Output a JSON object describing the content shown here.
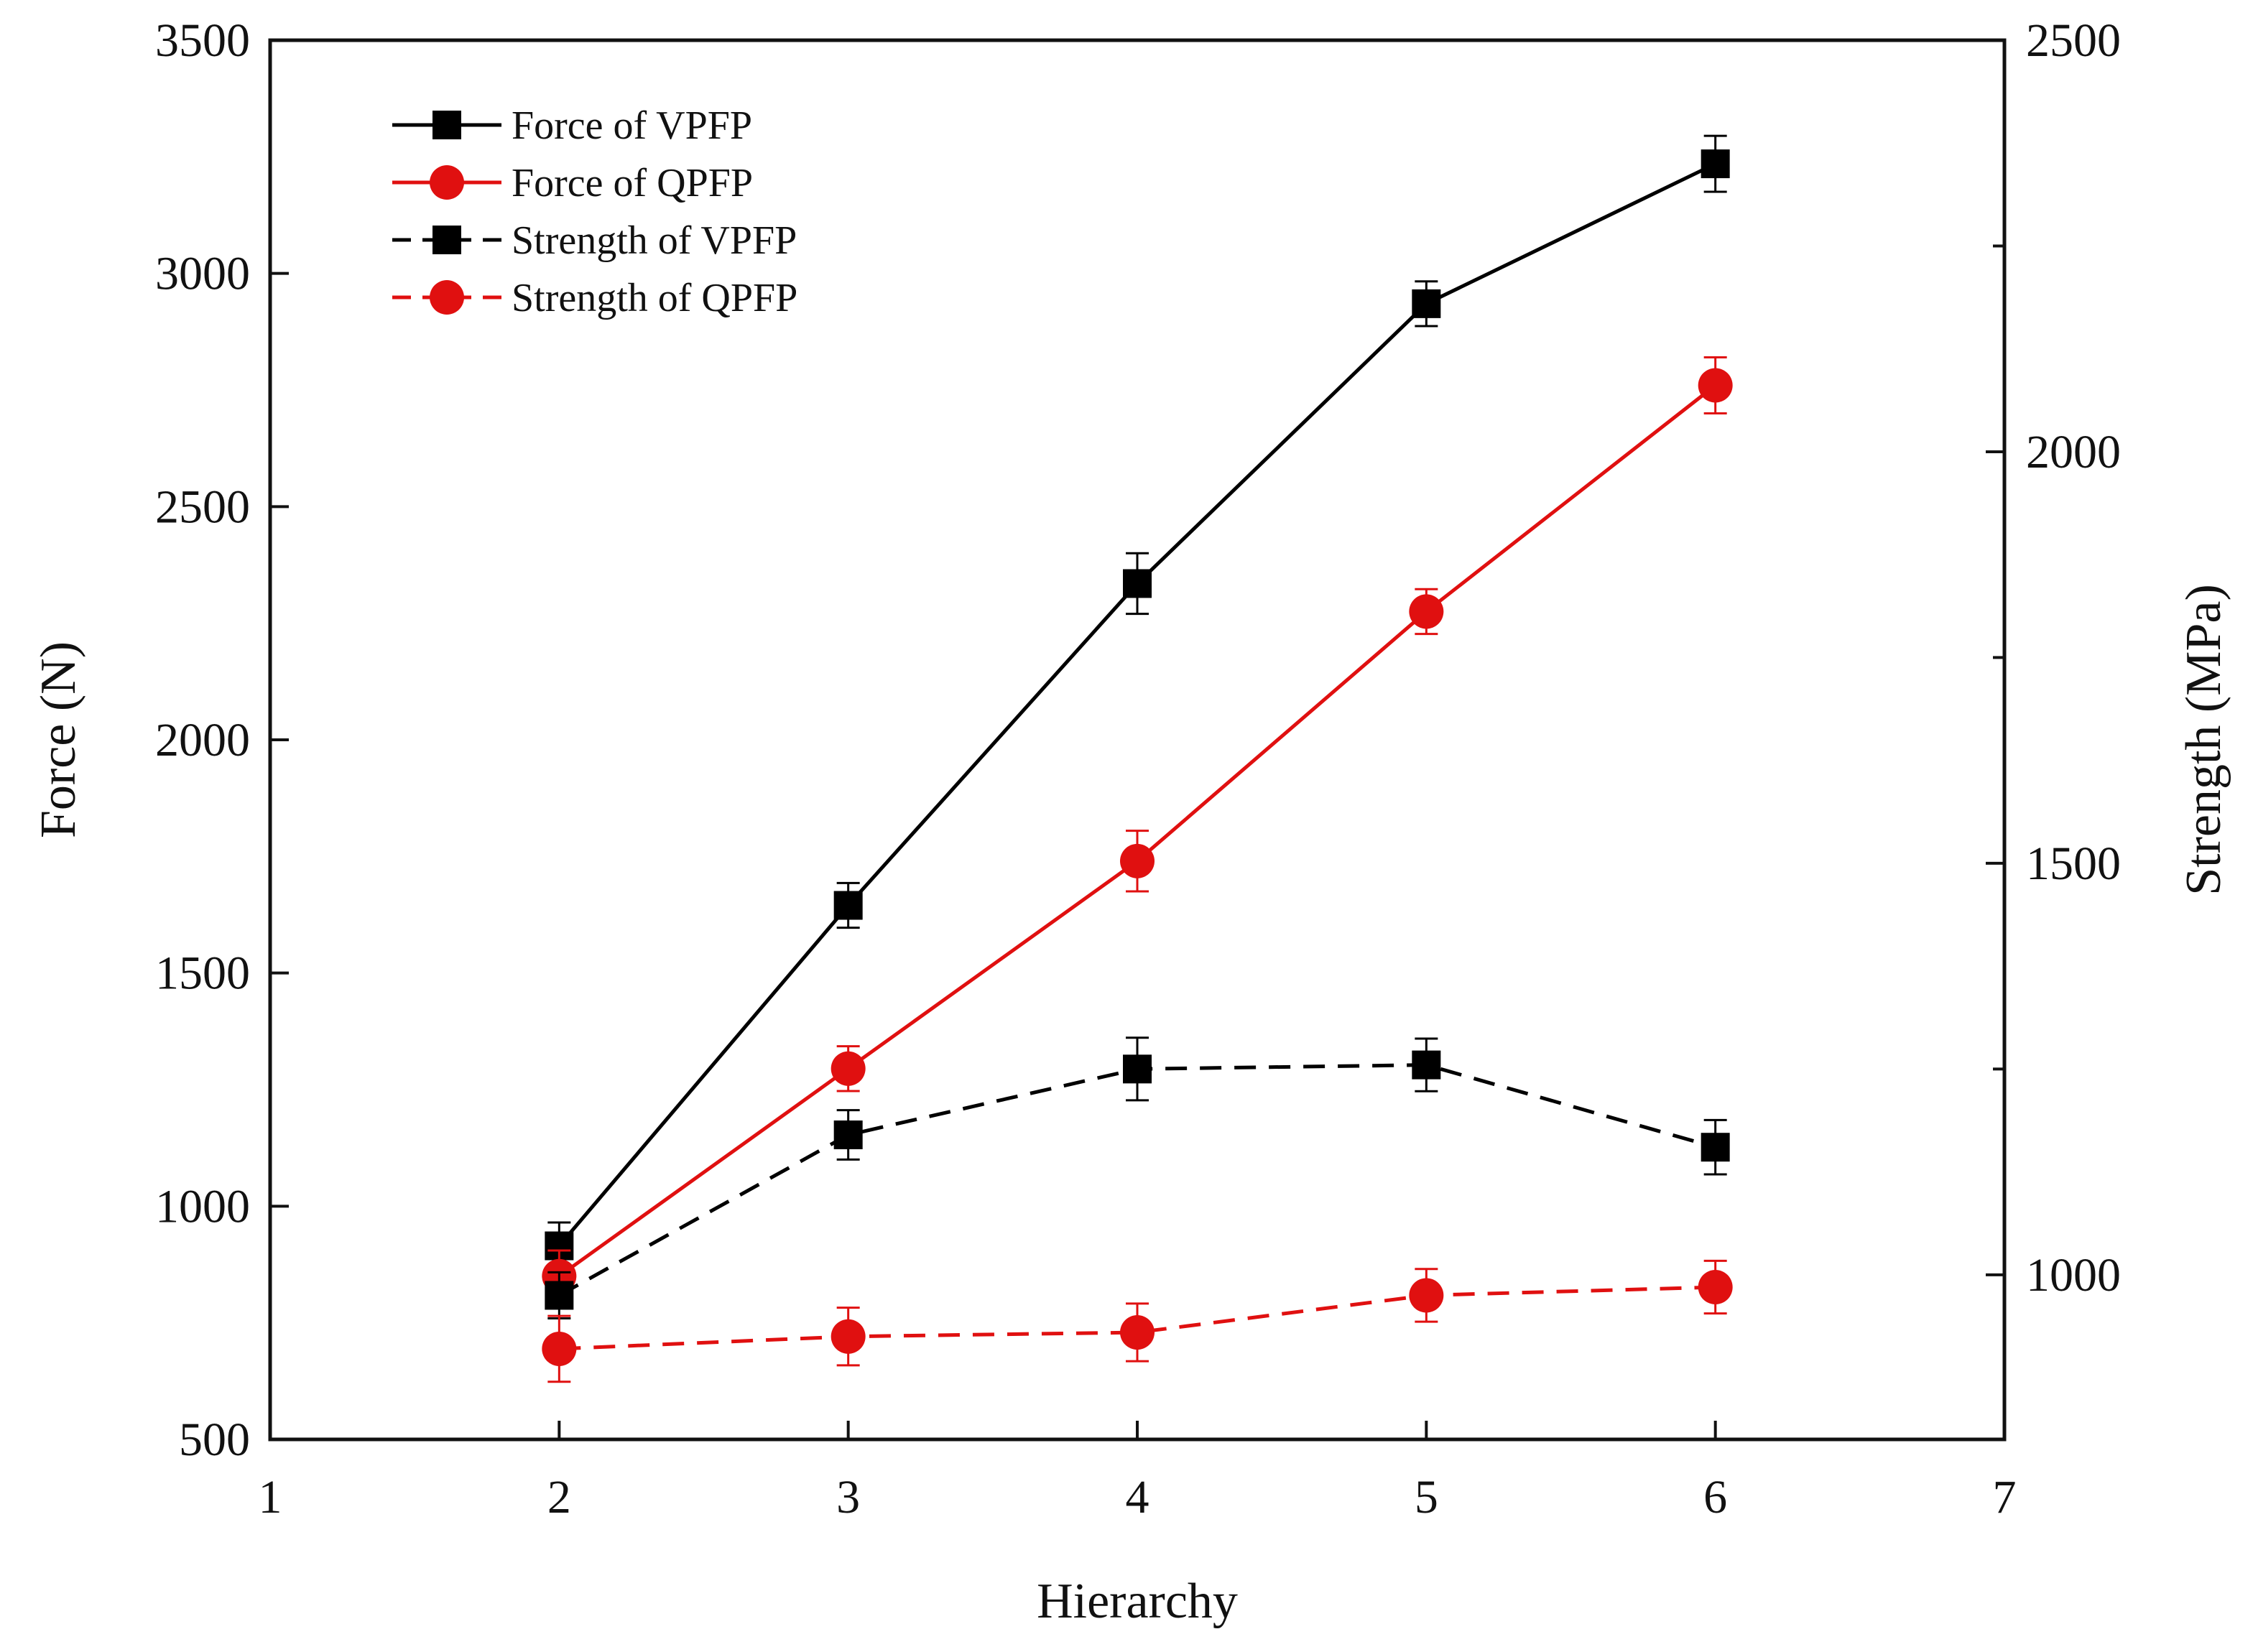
{
  "chart_data": {
    "type": "line",
    "xlabel": "Hierarchy",
    "ylabel_left": "Force (N)",
    "ylabel_right": "Strength (MPa)",
    "xlim": [
      1,
      7
    ],
    "ylim_left": [
      500,
      3500
    ],
    "ylim_right": [
      800,
      2500
    ],
    "xticks": [
      1,
      2,
      3,
      4,
      5,
      6,
      7
    ],
    "yticks_left": [
      500,
      1000,
      1500,
      2000,
      2500,
      3000,
      3500
    ],
    "yticks_right": [
      1000,
      1500,
      2000,
      2500
    ],
    "legend_position": "top-left",
    "grid": false,
    "series": [
      {
        "name": "Force of VPFP",
        "axis": "left",
        "style": "solid",
        "marker": "square",
        "color": "#000000",
        "x": [
          2,
          3,
          4,
          5,
          6
        ],
        "y": [
          915,
          1645,
          2335,
          2935,
          3235
        ],
        "err": [
          50,
          48,
          65,
          48,
          60
        ]
      },
      {
        "name": "Force of QPFP",
        "axis": "left",
        "style": "solid",
        "marker": "circle",
        "color": "#e01010",
        "x": [
          2,
          3,
          4,
          5,
          6
        ],
        "y": [
          850,
          1295,
          1740,
          2275,
          2760
        ],
        "err": [
          55,
          48,
          65,
          48,
          60
        ]
      },
      {
        "name": "Strength of VPFP",
        "axis": "right",
        "style": "dashed",
        "marker": "square",
        "color": "#000000",
        "x": [
          2,
          3,
          4,
          5,
          6
        ],
        "y": [
          975,
          1170,
          1250,
          1255,
          1155
        ],
        "err": [
          28,
          30,
          38,
          32,
          33
        ]
      },
      {
        "name": "Strength of QPFP",
        "axis": "right",
        "style": "dashed",
        "marker": "circle",
        "color": "#e01010",
        "x": [
          2,
          3,
          4,
          5,
          6
        ],
        "y": [
          910,
          925,
          930,
          975,
          985
        ],
        "err": [
          40,
          35,
          35,
          32,
          32
        ]
      }
    ]
  }
}
